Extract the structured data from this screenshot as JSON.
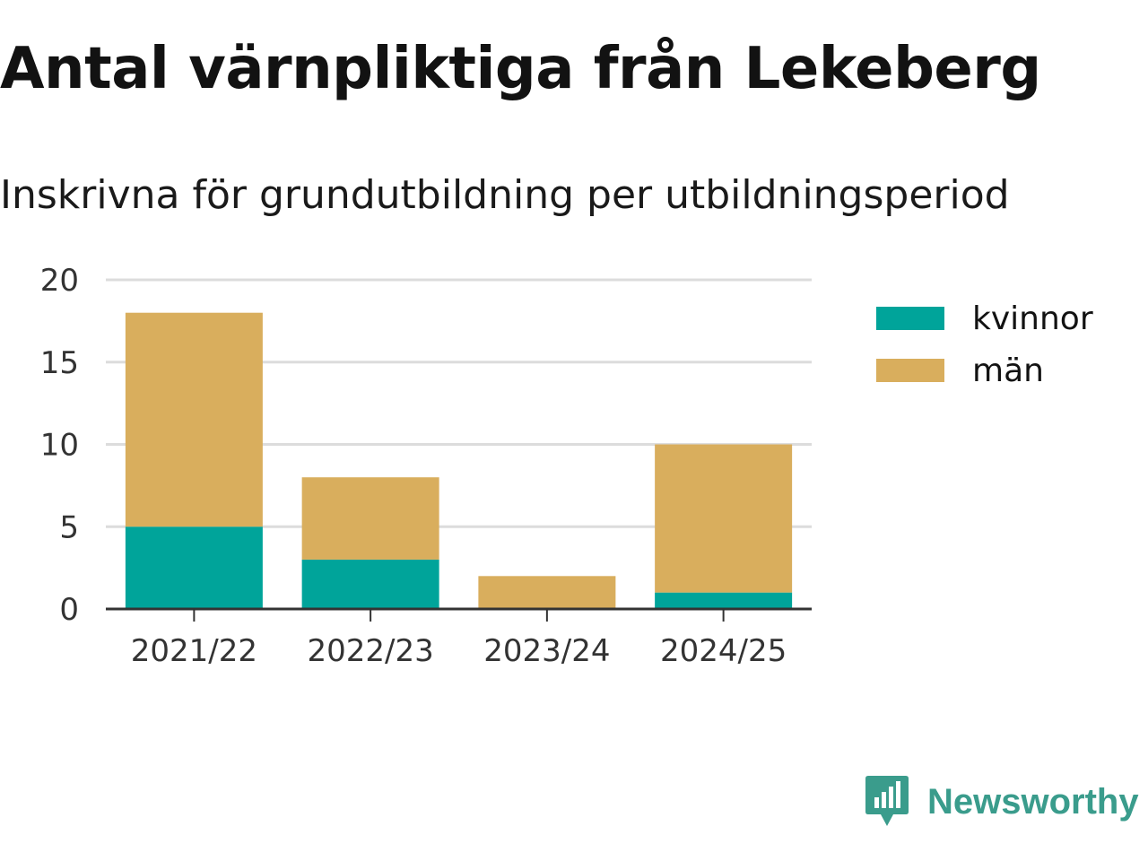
{
  "title": "Antal värnpliktiga från Lekeberg",
  "subtitle": "Inskrivna för grundutbildning per utbildningsperiod",
  "brand": {
    "name": "Newsworthy",
    "icon": "newsworthy-logo-icon",
    "color": "#3a9c8c"
  },
  "chart_data": {
    "type": "bar",
    "stacked": true,
    "title": "Antal värnpliktiga från Lekeberg",
    "subtitle": "Inskrivna för grundutbildning per utbildningsperiod",
    "categories": [
      "2021/22",
      "2022/23",
      "2023/24",
      "2024/25"
    ],
    "series": [
      {
        "name": "kvinnor",
        "values": [
          5,
          3,
          0,
          1
        ],
        "color": "#00a49a"
      },
      {
        "name": "män",
        "values": [
          13,
          5,
          2,
          9
        ],
        "color": "#d9ae5d"
      }
    ],
    "xlabel": "",
    "ylabel": "",
    "ylim": [
      0,
      20
    ],
    "yticks": [
      "0",
      "5",
      "10",
      "15",
      "20"
    ],
    "grid": true,
    "legend": "top-right"
  }
}
